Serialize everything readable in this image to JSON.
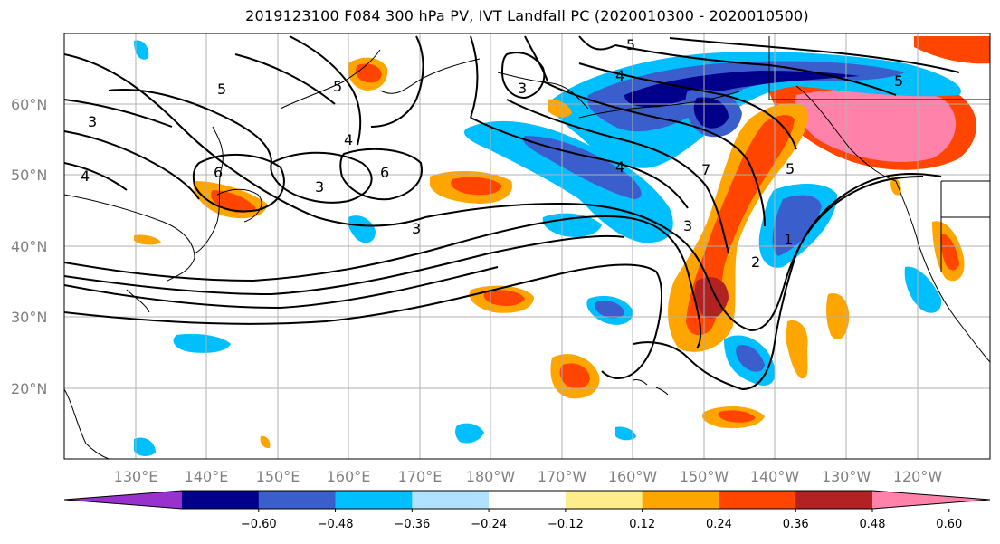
{
  "title": "2019123100 F084 300 hPa PV, IVT Landfall PC (2020010300 - 2020010500)",
  "lat_labels": [
    "60°N",
    "50°N",
    "40°N",
    "30°N",
    "20°N"
  ],
  "lon_labels": [
    "130°E",
    "140°E",
    "150°E",
    "160°E",
    "170°E",
    "180°W",
    "170°W",
    "160°W",
    "150°W",
    "140°W",
    "130°W",
    "120°W"
  ],
  "contour_labels": [
    "5",
    "3",
    "4",
    "6",
    "6",
    "5",
    "3",
    "4",
    "3",
    "3",
    "4",
    "5",
    "5",
    "7",
    "1",
    "2",
    "3",
    "4",
    "5"
  ],
  "colorbar": {
    "colors": [
      "#9932cc",
      "#00008b",
      "#3a5fcd",
      "#00bfff",
      "#b0e2ff",
      "#ffffff",
      "#ffec8b",
      "#ffa500",
      "#ff4500",
      "#b22222",
      "#ff82ab"
    ],
    "ticks": [
      "−0.60",
      "−0.48",
      "−0.36",
      "−0.24",
      "−0.12",
      "0.12",
      "0.24",
      "0.36",
      "0.48",
      "0.60"
    ]
  }
}
